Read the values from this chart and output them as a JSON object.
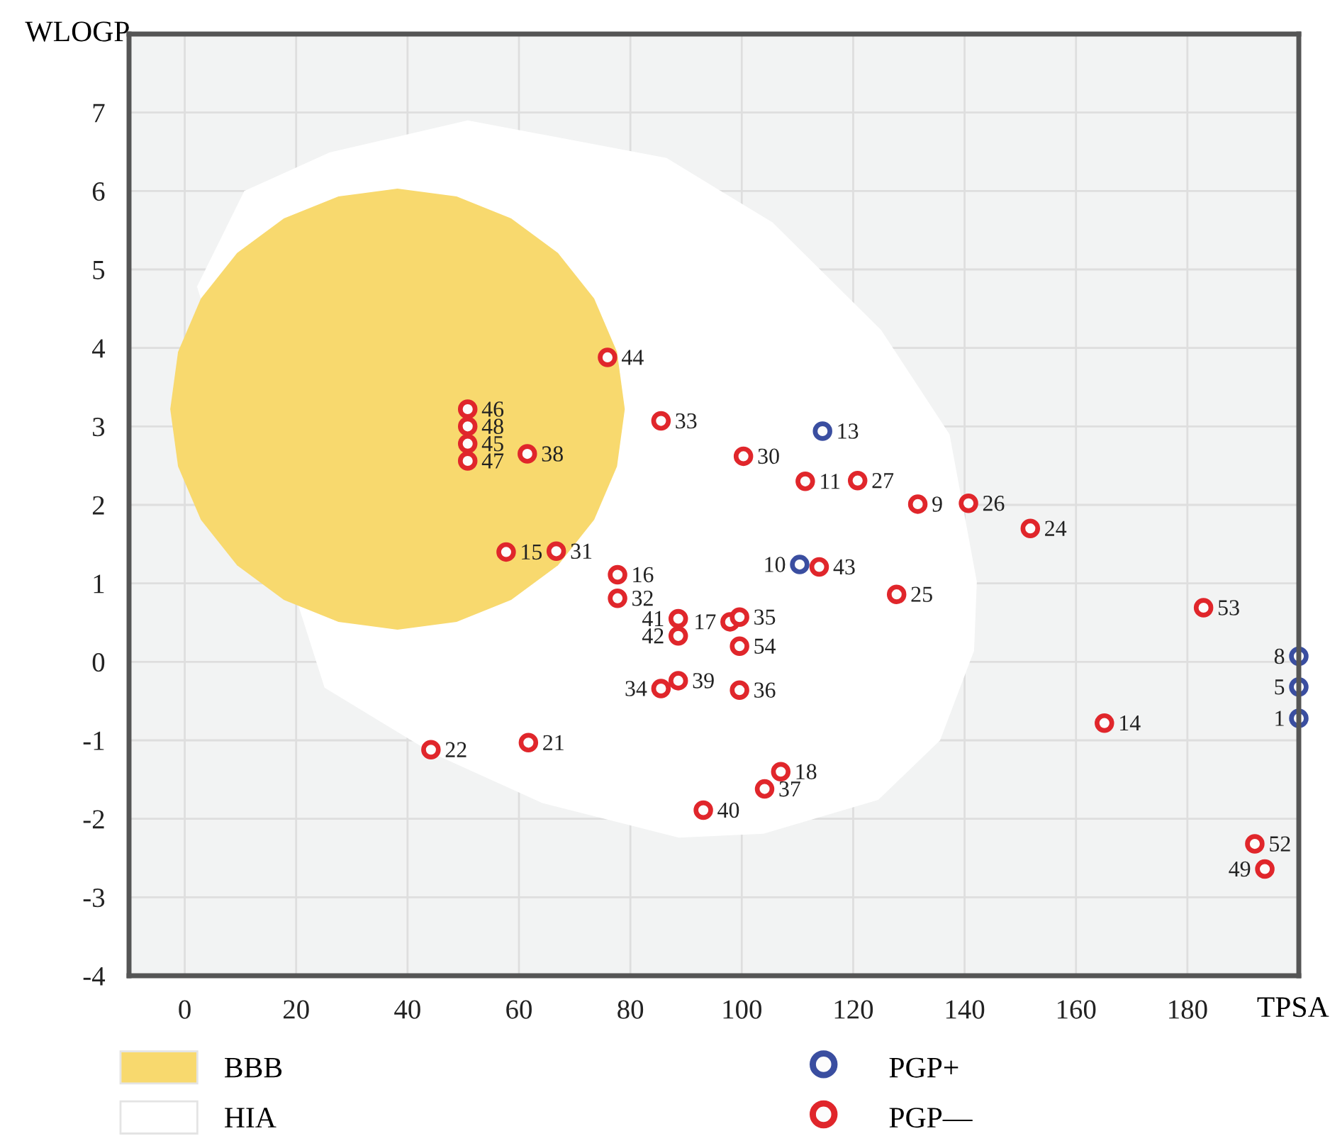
{
  "chart_data": {
    "type": "scatter",
    "xlabel": "TPSA",
    "ylabel": "WLOGP",
    "xlim": [
      -10,
      200
    ],
    "ylim": [
      -4,
      8
    ],
    "xticks": [
      0,
      20,
      40,
      60,
      80,
      100,
      120,
      140,
      160,
      180
    ],
    "yticks": [
      -4,
      -3,
      -2,
      -1,
      0,
      1,
      2,
      3,
      4,
      5,
      6,
      7
    ],
    "grid": true,
    "legend": "bottom",
    "series": [
      {
        "name": "HIA",
        "type": "area",
        "color": "#ffffff",
        "x": [
          50.8,
          86.5,
          105.5,
          125.0,
          137.3,
          142.2,
          141.7,
          135.6,
          124.5,
          103.9,
          88.7,
          64.2,
          44.6,
          25.1,
          null,
          null,
          2.2,
          10.7,
          26.0
        ],
        "values": [
          6.9,
          6.42,
          5.6,
          4.23,
          2.9,
          1.02,
          0.14,
          -1.0,
          -1.76,
          -2.19,
          -2.24,
          -1.8,
          -1.17,
          -0.33,
          null,
          null,
          4.78,
          6.0,
          6.49
        ]
      },
      {
        "name": "BBB",
        "type": "area",
        "color": "#f8d96e",
        "x": [
          79.0,
          77.6,
          73.5,
          67.0,
          58.6,
          48.8,
          38.2,
          27.6,
          17.8,
          9.4,
          2.9,
          -1.2,
          -2.6,
          -1.2,
          2.9,
          9.4,
          17.8,
          27.6,
          38.2,
          48.8,
          58.6,
          67.0,
          73.5,
          77.6
        ],
        "values": [
          3.22,
          3.95,
          4.63,
          5.21,
          5.65,
          5.93,
          6.03,
          5.93,
          5.65,
          5.21,
          4.63,
          3.95,
          3.22,
          2.49,
          1.81,
          1.23,
          0.79,
          0.51,
          0.41,
          0.51,
          0.79,
          1.23,
          1.81,
          2.49
        ]
      },
      {
        "name": "PGP+",
        "type": "scatter",
        "marker": "circle",
        "color": "#3a4ea0",
        "x": [
          114.5,
          110.4,
          200,
          200,
          200
        ],
        "values": [
          2.94,
          1.24,
          0.07,
          -0.32,
          -0.72
        ]
      },
      {
        "name": "PGP—",
        "type": "scatter",
        "marker": "circle",
        "color": "#e0262b",
        "x": [
          75.9,
          50.8,
          50.8,
          50.8,
          50.8,
          61.5,
          85.5,
          100.3,
          111.4,
          120.8,
          131.6,
          140.7,
          151.8,
          57.7,
          66.7,
          77.7,
          77.7,
          113.9,
          127.8,
          182.9,
          88.6,
          97.9,
          99.6,
          88.6,
          99.6,
          85.5,
          88.6,
          99.6,
          165.1,
          44.2,
          61.7,
          107.0,
          104.1,
          93.1,
          192.1,
          193.9
        ],
        "values": [
          3.88,
          3.22,
          3.0,
          2.78,
          2.56,
          2.65,
          3.07,
          2.62,
          2.3,
          2.31,
          2.01,
          2.02,
          1.7,
          1.4,
          1.41,
          1.11,
          0.81,
          1.21,
          0.86,
          0.69,
          0.55,
          0.51,
          0.57,
          0.33,
          0.2,
          -0.34,
          -0.24,
          -0.36,
          -0.78,
          -1.12,
          -1.03,
          -1.4,
          -1.62,
          -1.89,
          -2.32,
          -2.64
        ]
      }
    ],
    "annotations": [
      {
        "text": "13",
        "x": 114.5,
        "y": 2.94
      },
      {
        "text": "10",
        "x": 110.4,
        "y": 1.24
      },
      {
        "text": "8",
        "x": 200,
        "y": 0.07
      },
      {
        "text": "5",
        "x": 200,
        "y": -0.32
      },
      {
        "text": "1",
        "x": 200,
        "y": -0.72
      },
      {
        "text": "44",
        "x": 75.9,
        "y": 3.88
      },
      {
        "text": "46",
        "x": 50.8,
        "y": 3.22
      },
      {
        "text": "48",
        "x": 50.8,
        "y": 3.0
      },
      {
        "text": "45",
        "x": 50.8,
        "y": 2.78
      },
      {
        "text": "47",
        "x": 50.8,
        "y": 2.56
      },
      {
        "text": "38",
        "x": 61.5,
        "y": 2.65
      },
      {
        "text": "33",
        "x": 85.5,
        "y": 3.07
      },
      {
        "text": "30",
        "x": 100.3,
        "y": 2.62
      },
      {
        "text": "11",
        "x": 111.4,
        "y": 2.3
      },
      {
        "text": "27",
        "x": 120.8,
        "y": 2.31
      },
      {
        "text": "9",
        "x": 131.6,
        "y": 2.01
      },
      {
        "text": "26",
        "x": 140.7,
        "y": 2.02
      },
      {
        "text": "24",
        "x": 151.8,
        "y": 1.7
      },
      {
        "text": "15",
        "x": 57.7,
        "y": 1.4
      },
      {
        "text": "31",
        "x": 66.7,
        "y": 1.41
      },
      {
        "text": "16",
        "x": 77.7,
        "y": 1.11
      },
      {
        "text": "32",
        "x": 77.7,
        "y": 0.81
      },
      {
        "text": "43",
        "x": 113.9,
        "y": 1.21
      },
      {
        "text": "25",
        "x": 127.8,
        "y": 0.86
      },
      {
        "text": "53",
        "x": 182.9,
        "y": 0.69
      },
      {
        "text": "41",
        "x": 88.6,
        "y": 0.55
      },
      {
        "text": "17",
        "x": 97.9,
        "y": 0.51
      },
      {
        "text": "35",
        "x": 99.6,
        "y": 0.57
      },
      {
        "text": "42",
        "x": 88.6,
        "y": 0.33
      },
      {
        "text": "54",
        "x": 99.6,
        "y": 0.2
      },
      {
        "text": "34",
        "x": 85.5,
        "y": -0.34
      },
      {
        "text": "39",
        "x": 88.6,
        "y": -0.24
      },
      {
        "text": "36",
        "x": 99.6,
        "y": -0.36
      },
      {
        "text": "14",
        "x": 165.1,
        "y": -0.78
      },
      {
        "text": "22",
        "x": 44.2,
        "y": -1.12
      },
      {
        "text": "21",
        "x": 61.7,
        "y": -1.03
      },
      {
        "text": "18",
        "x": 107.0,
        "y": -1.4
      },
      {
        "text": "37",
        "x": 104.1,
        "y": -1.62
      },
      {
        "text": "40",
        "x": 93.1,
        "y": -1.89
      },
      {
        "text": "52",
        "x": 192.1,
        "y": -2.32
      },
      {
        "text": "49",
        "x": 193.9,
        "y": -2.64
      }
    ]
  }
}
